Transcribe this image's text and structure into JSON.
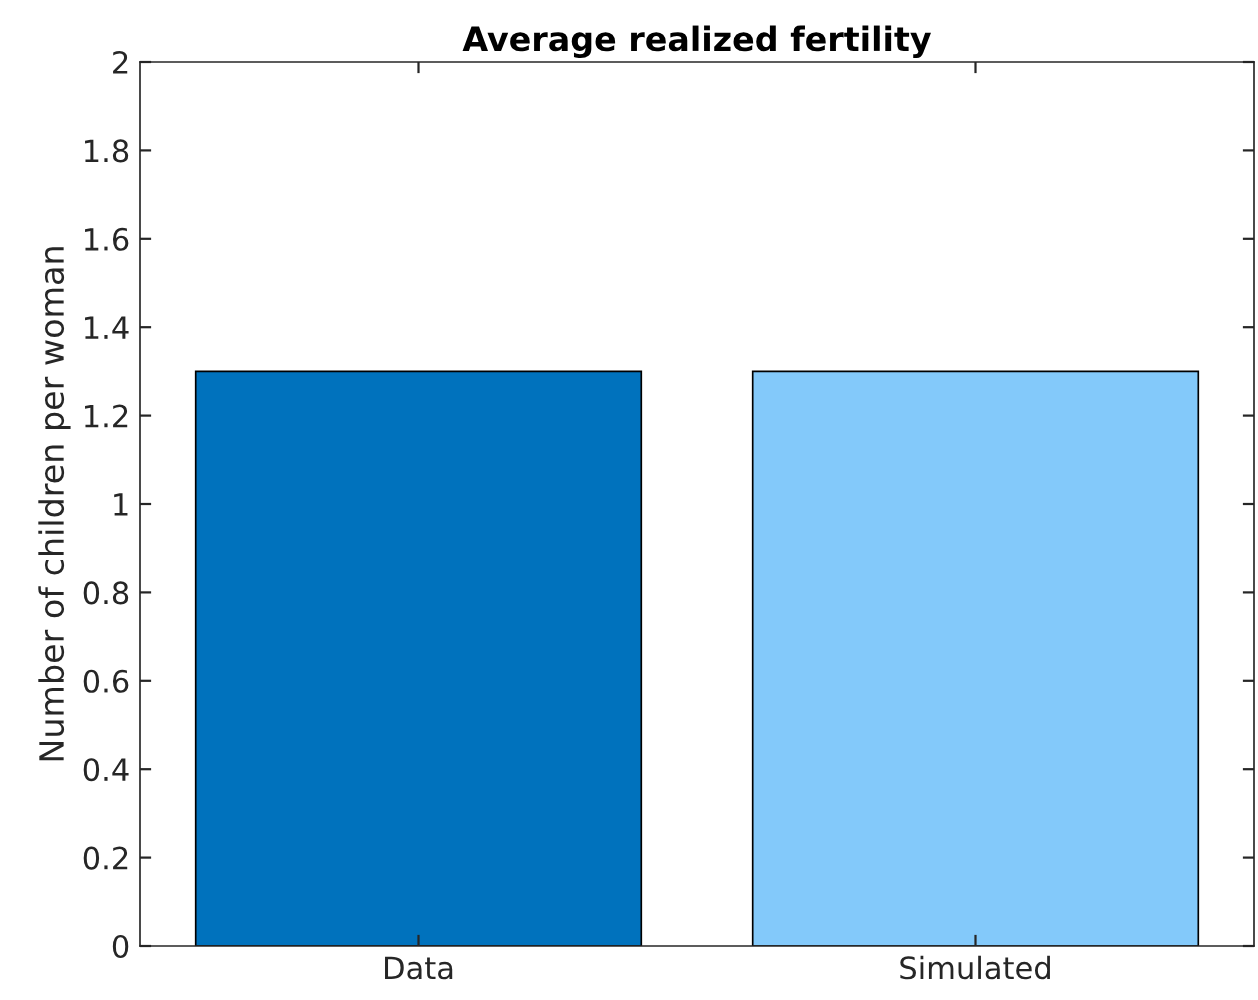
{
  "chart_data": {
    "type": "bar",
    "title": "Average realized fertility",
    "ylabel": "Number of children per woman",
    "categories": [
      "Data",
      "Simulated"
    ],
    "values": [
      1.3,
      1.3
    ],
    "colors": [
      "#0072bd",
      "#83c9fa"
    ],
    "ylim": [
      0,
      2
    ],
    "yticks": [
      0,
      0.2,
      0.4,
      0.6,
      0.8,
      1,
      1.2,
      1.4,
      1.6,
      1.8,
      2
    ],
    "grid": false
  }
}
